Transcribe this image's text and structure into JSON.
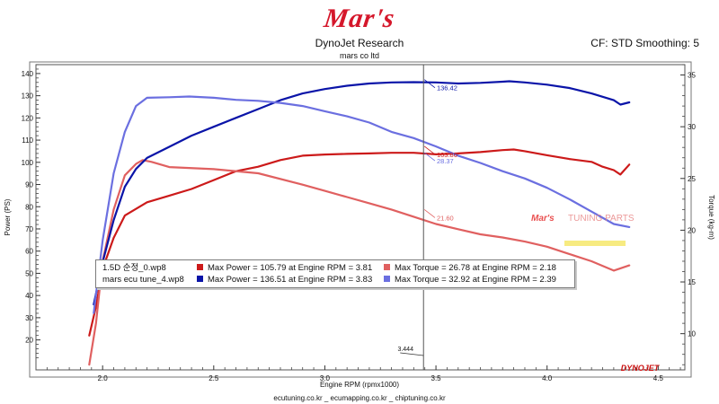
{
  "header": {
    "logo_text": "Mar's",
    "title": "DynoJet Research",
    "subtitle": "mars co ltd",
    "settings": "CF: STD Smoothing: 5"
  },
  "footer": {
    "text": "ecutuning.co.kr _ ecumapping.co.kr _ chiptuning.co.kr"
  },
  "watermark": {
    "logo_text": "Mar's",
    "logo_suffix": "TUNING PARTS"
  },
  "brand_logo": "DYNOJET",
  "legend": {
    "rows": [
      {
        "name": "1.5D 순정_0.wp8",
        "power": "Max Power = 105.79 at Engine RPM = 3.81",
        "torque": "Max Torque = 26.78 at Engine RPM = 2.18",
        "power_color": "#cc1a1a",
        "torque_color": "#e06060"
      },
      {
        "name": "mars ecu tune_4.wp8",
        "power": "Max Power = 136.51 at Engine RPM = 3.83",
        "torque": "Max Torque = 32.92 at Engine RPM = 2.39",
        "power_color": "#0a14a8",
        "torque_color": "#6b6fe0"
      }
    ]
  },
  "chart_data": {
    "type": "line",
    "xlabel": "Engine RPM (rpmx1000)",
    "ylabel": "Power (PS)",
    "y2label": "Torque (kg-m)",
    "xlim": [
      1.7,
      4.62
    ],
    "ylim": [
      6.5,
      144
    ],
    "y2lim": [
      6.5,
      36
    ],
    "x_ticks": [
      "2.0",
      "2.5",
      "3.0",
      "3.5",
      "4.0",
      "4.5"
    ],
    "y_ticks": [
      20,
      30,
      40,
      50,
      60,
      70,
      80,
      90,
      100,
      110,
      120,
      130,
      140
    ],
    "y2_ticks": [
      10,
      15,
      20,
      25,
      30,
      35
    ],
    "grid": false,
    "cursor": {
      "x": 3.444,
      "label": "3.444"
    },
    "series": [
      {
        "name": "1.5D 순정_0.wp8",
        "axis": "left",
        "color": "#cc1a1a",
        "x": [
          1.94,
          1.97,
          2.0,
          2.05,
          2.1,
          2.2,
          2.3,
          2.4,
          2.5,
          2.6,
          2.7,
          2.8,
          2.9,
          3.0,
          3.1,
          3.2,
          3.3,
          3.4,
          3.5,
          3.6,
          3.7,
          3.8,
          3.85,
          3.9,
          4.0,
          4.1,
          4.2,
          4.25,
          4.3,
          4.33,
          4.37
        ],
        "y": [
          22,
          35,
          52,
          66,
          76,
          82,
          85,
          88,
          92,
          96,
          98,
          101,
          103,
          103.5,
          103.8,
          104,
          104.3,
          104.3,
          103.6,
          104,
          104.6,
          105.5,
          105.8,
          105,
          103.2,
          101.5,
          100.2,
          98,
          96.5,
          94.5,
          99
        ]
      },
      {
        "name": "1.5D 순정_0.wp8",
        "axis": "right",
        "color": "#e06060",
        "x": [
          1.94,
          1.97,
          2.0,
          2.05,
          2.1,
          2.15,
          2.18,
          2.22,
          2.3,
          2.5,
          2.7,
          2.9,
          3.0,
          3.1,
          3.2,
          3.3,
          3.4,
          3.5,
          3.6,
          3.7,
          3.8,
          3.9,
          4.0,
          4.1,
          4.2,
          4.3,
          4.37
        ],
        "y": [
          7,
          11,
          17,
          22,
          25.3,
          26.4,
          26.78,
          26.6,
          26.1,
          25.9,
          25.5,
          24.4,
          23.8,
          23.2,
          22.6,
          22,
          21.3,
          20.6,
          20.1,
          19.6,
          19.3,
          18.9,
          18.4,
          17.7,
          17,
          16.1,
          16.6
        ]
      },
      {
        "name": "mars ecu tune_4.wp8",
        "axis": "left",
        "color": "#0a14a8",
        "x": [
          1.96,
          2.0,
          2.05,
          2.1,
          2.15,
          2.2,
          2.3,
          2.4,
          2.5,
          2.6,
          2.7,
          2.8,
          2.9,
          3.0,
          3.1,
          3.2,
          3.3,
          3.4,
          3.5,
          3.6,
          3.7,
          3.8,
          3.83,
          3.9,
          4.0,
          4.1,
          4.2,
          4.3,
          4.33,
          4.37
        ],
        "y": [
          36,
          55,
          74,
          89,
          97,
          102,
          107,
          112,
          116,
          120,
          124,
          128,
          131,
          133,
          134.5,
          135.5,
          136,
          136.1,
          136,
          135.5,
          135.8,
          136.3,
          136.5,
          136,
          135,
          133.5,
          131,
          128,
          126,
          127
        ]
      },
      {
        "name": "mars ecu tune_4.wp8",
        "axis": "right",
        "color": "#6b6fe0",
        "x": [
          1.96,
          2.0,
          2.05,
          2.1,
          2.15,
          2.2,
          2.3,
          2.39,
          2.5,
          2.6,
          2.7,
          2.8,
          2.9,
          3.0,
          3.1,
          3.2,
          3.3,
          3.4,
          3.5,
          3.6,
          3.7,
          3.8,
          3.9,
          4.0,
          4.1,
          4.2,
          4.3,
          4.37
        ],
        "y": [
          12,
          19,
          25.5,
          29.5,
          32,
          32.8,
          32.85,
          32.92,
          32.8,
          32.6,
          32.5,
          32.3,
          32,
          31.5,
          31,
          30.4,
          29.5,
          28.9,
          28.1,
          27.2,
          26.5,
          25.7,
          25,
          24.1,
          23,
          21.8,
          20.6,
          20.3
        ]
      }
    ],
    "annotations": [
      {
        "text": "136.42",
        "x": 3.455,
        "y": 134,
        "axis": "left",
        "color": "#0a14a8"
      },
      {
        "text": "28.37",
        "x": 3.455,
        "y": 26.8,
        "axis": "right",
        "color": "#6b6fe0"
      },
      {
        "text": "103.86",
        "x": 3.455,
        "y": 104,
        "axis": "left",
        "color": "#cc1a1a"
      },
      {
        "text": "21.60",
        "x": 3.455,
        "y": 21.3,
        "axis": "right",
        "color": "#e06060"
      }
    ]
  }
}
